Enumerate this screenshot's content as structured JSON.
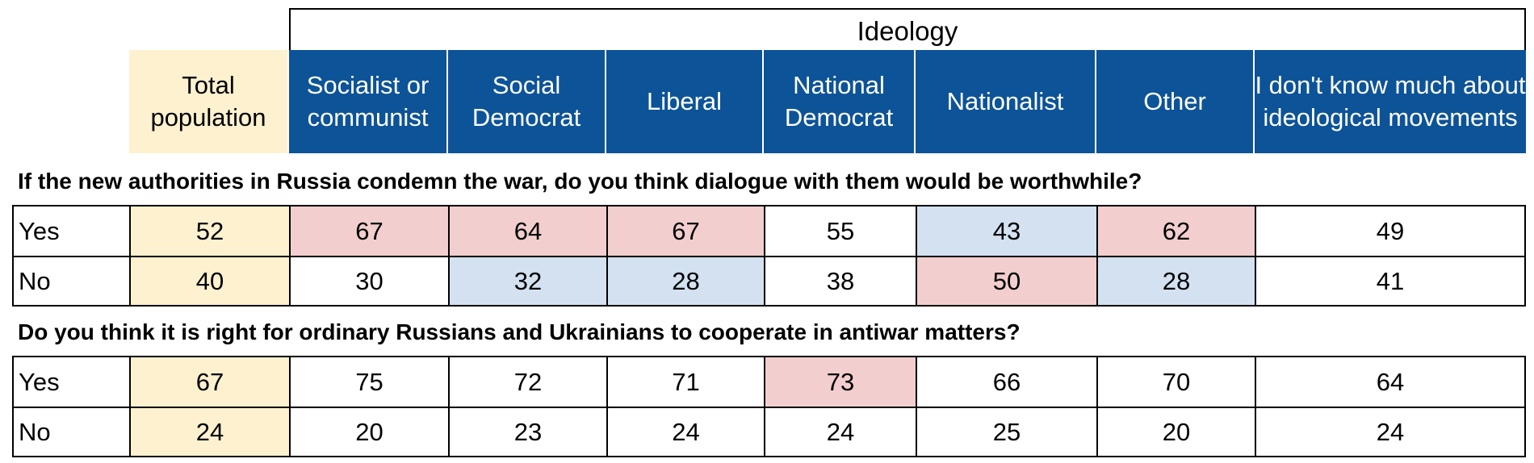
{
  "chart_data": {
    "type": "table",
    "group_header": "Ideology",
    "columns": [
      "Total population",
      "Socialist or communist",
      "Social Democrat",
      "Liberal",
      "National Democrat",
      "Nationalist",
      "Other",
      "I don't know much about ideological movements"
    ],
    "sections": [
      {
        "question": "If the new authorities in Russia condemn the war, do you think dialogue with them would be worthwhile?",
        "rows": [
          {
            "label": "Yes",
            "values": [
              52,
              67,
              64,
              67,
              55,
              43,
              62,
              49
            ],
            "highlight": [
              "total",
              "high",
              "high",
              "high",
              "none",
              "low",
              "high",
              "none"
            ]
          },
          {
            "label": "No",
            "values": [
              40,
              30,
              32,
              28,
              38,
              50,
              28,
              41
            ],
            "highlight": [
              "total",
              "none",
              "low",
              "low",
              "none",
              "high",
              "low",
              "none"
            ]
          }
        ]
      },
      {
        "question": "Do you think it is right for ordinary Russians and Ukrainians to cooperate in antiwar matters?",
        "rows": [
          {
            "label": "Yes",
            "values": [
              67,
              75,
              72,
              71,
              73,
              66,
              70,
              64
            ],
            "highlight": [
              "total",
              "none",
              "none",
              "none",
              "high",
              "none",
              "none",
              "none"
            ]
          },
          {
            "label": "No",
            "values": [
              24,
              20,
              23,
              24,
              24,
              25,
              20,
              24
            ],
            "highlight": [
              "total",
              "none",
              "none",
              "none",
              "none",
              "none",
              "none",
              "none"
            ]
          }
        ]
      }
    ],
    "colors": {
      "header_blue": "#0d5398",
      "total_fill": "#fdf1cf",
      "high_fill": "#f2cece",
      "low_fill": "#d3e1f1",
      "none_fill": "#ffffff"
    }
  }
}
